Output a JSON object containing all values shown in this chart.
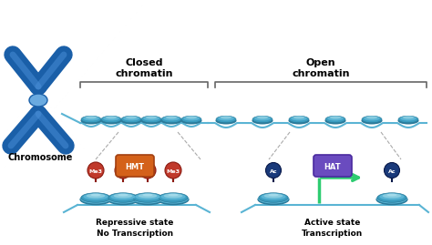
{
  "bg_color": "#ffffff",
  "title_closed": "Closed\nchromatin",
  "title_open": "Open\nchromatin",
  "chromosome_label": "Chromosome",
  "hmt_label": "HMT",
  "hat_label": "HAT",
  "me3_label": "Me3",
  "ac_label": "Ac",
  "repressive_state": "Repressive state",
  "no_transcription": "No Transcription",
  "active_state": "Active state",
  "transcription": "Transcription",
  "colors": {
    "nuc_outer": "#89cce0",
    "nuc_mid": "#5ab4d4",
    "nuc_inner": "#3a9cbf",
    "nuc_dark": "#2a7a9a",
    "nuc_highlight": "#c0e8f5",
    "chr_blue": "#1a5fa8",
    "chr_light": "#4a90d9",
    "chr_center": "#6aaae0",
    "red_ball": "#c0392b",
    "red_dark": "#8b1a10",
    "orange_box": "#d4611a",
    "orange_dark": "#a34010",
    "purple_box": "#6a4bbf",
    "purple_dark": "#4a2a9f",
    "navy_ball": "#1a3a7a",
    "navy_dark": "#0a1a4a",
    "green_arrow": "#2ecc71",
    "dna_line": "#5ab4d4",
    "bracket_color": "#666666",
    "dash_color": "#aaaaaa"
  }
}
